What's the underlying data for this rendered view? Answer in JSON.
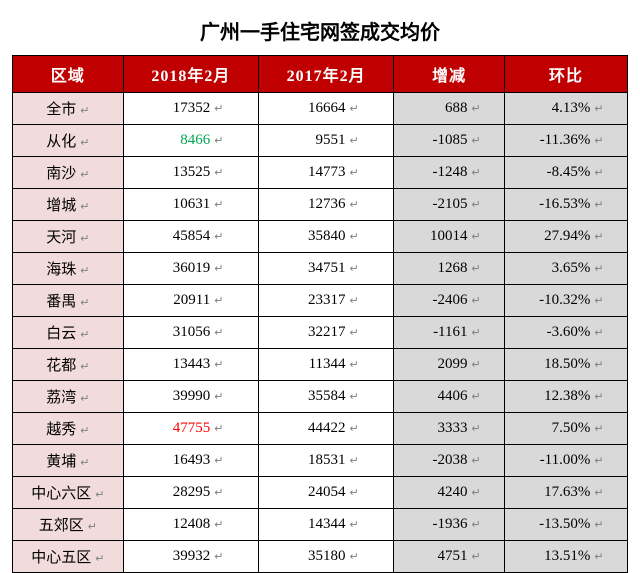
{
  "title": "广州一手住宅网签成交均价",
  "columns": [
    "区域",
    "2018年2月",
    "2017年2月",
    "增减",
    "环比"
  ],
  "background_color": "#ffffff",
  "header_bg": "#c00000",
  "header_fg": "#ffffff",
  "region_bg": "#f2dcdb",
  "value_bg": "#ffffff",
  "diff_bg": "#d9d9d9",
  "border_color": "#000000",
  "title_fontsize": 20,
  "header_fontsize": 16,
  "cell_fontsize": 15,
  "highlight_green_color": "#00a650",
  "highlight_red_color": "#ff0000",
  "return_glyph": "↵",
  "rows": [
    {
      "region": "全市",
      "v2018": "17352",
      "v2017": "16664",
      "diff": "688",
      "pct": "4.13%",
      "hl": ""
    },
    {
      "region": "从化",
      "v2018": "8466",
      "v2017": "9551",
      "diff": "-1085",
      "pct": "-11.36%",
      "hl": "green"
    },
    {
      "region": "南沙",
      "v2018": "13525",
      "v2017": "14773",
      "diff": "-1248",
      "pct": "-8.45%",
      "hl": ""
    },
    {
      "region": "增城",
      "v2018": "10631",
      "v2017": "12736",
      "diff": "-2105",
      "pct": "-16.53%",
      "hl": ""
    },
    {
      "region": "天河",
      "v2018": "45854",
      "v2017": "35840",
      "diff": "10014",
      "pct": "27.94%",
      "hl": ""
    },
    {
      "region": "海珠",
      "v2018": "36019",
      "v2017": "34751",
      "diff": "1268",
      "pct": "3.65%",
      "hl": ""
    },
    {
      "region": "番禺",
      "v2018": "20911",
      "v2017": "23317",
      "diff": "-2406",
      "pct": "-10.32%",
      "hl": ""
    },
    {
      "region": "白云",
      "v2018": "31056",
      "v2017": "32217",
      "diff": "-1161",
      "pct": "-3.60%",
      "hl": ""
    },
    {
      "region": "花都",
      "v2018": "13443",
      "v2017": "11344",
      "diff": "2099",
      "pct": "18.50%",
      "hl": ""
    },
    {
      "region": "荔湾",
      "v2018": "39990",
      "v2017": "35584",
      "diff": "4406",
      "pct": "12.38%",
      "hl": ""
    },
    {
      "region": "越秀",
      "v2018": "47755",
      "v2017": "44422",
      "diff": "3333",
      "pct": "7.50%",
      "hl": "red"
    },
    {
      "region": "黄埔",
      "v2018": "16493",
      "v2017": "18531",
      "diff": "-2038",
      "pct": "-11.00%",
      "hl": ""
    },
    {
      "region": "中心六区",
      "v2018": "28295",
      "v2017": "24054",
      "diff": "4240",
      "pct": "17.63%",
      "hl": ""
    },
    {
      "region": "五郊区",
      "v2018": "12408",
      "v2017": "14344",
      "diff": "-1936",
      "pct": "-13.50%",
      "hl": ""
    },
    {
      "region": "中心五区",
      "v2018": "39932",
      "v2017": "35180",
      "diff": "4751",
      "pct": "13.51%",
      "hl": ""
    }
  ]
}
